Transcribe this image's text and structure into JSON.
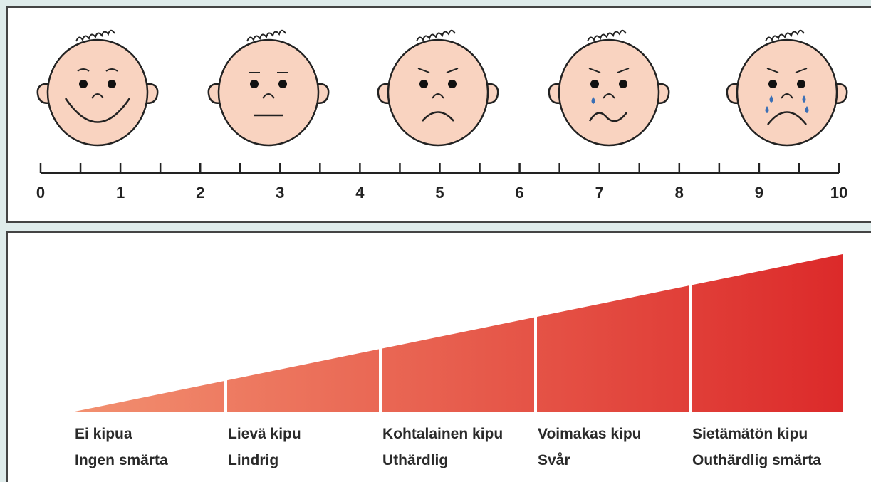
{
  "scale": {
    "ticks": [
      0,
      1,
      2,
      3,
      4,
      5,
      6,
      7,
      8,
      9,
      10
    ]
  },
  "levels": [
    {
      "fi": "Ei kipua",
      "sv": "Ingen smärta"
    },
    {
      "fi": "Lievä kipu",
      "sv": "Lindrig"
    },
    {
      "fi": "Kohtalainen kipu",
      "sv": "Uthärdlig"
    },
    {
      "fi": "Voimakas kipu",
      "sv": "Svår"
    },
    {
      "fi": "Sietämätön kipu",
      "sv": "Outhärdlig smärta"
    }
  ]
}
